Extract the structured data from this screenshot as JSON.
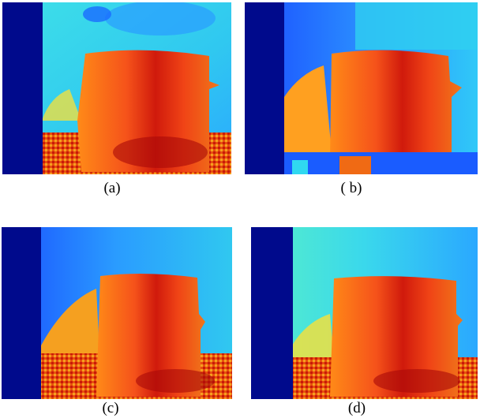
{
  "colors": {
    "jet_dark_blue": "#000a8c",
    "jet_blue": "#1a5cff",
    "jet_cyan": "#30d8f0",
    "jet_light_cyan": "#58f0d8",
    "jet_yellow": "#f0e040",
    "jet_orange": "#ff7a10",
    "jet_red": "#e8260a",
    "jet_dark_red": "#a80808"
  },
  "panels": [
    {
      "id": "a",
      "caption": "(a)"
    },
    {
      "id": "b",
      "caption": "( b)"
    },
    {
      "id": "c",
      "caption": "(c)"
    },
    {
      "id": "d",
      "caption": "(d)"
    }
  ]
}
